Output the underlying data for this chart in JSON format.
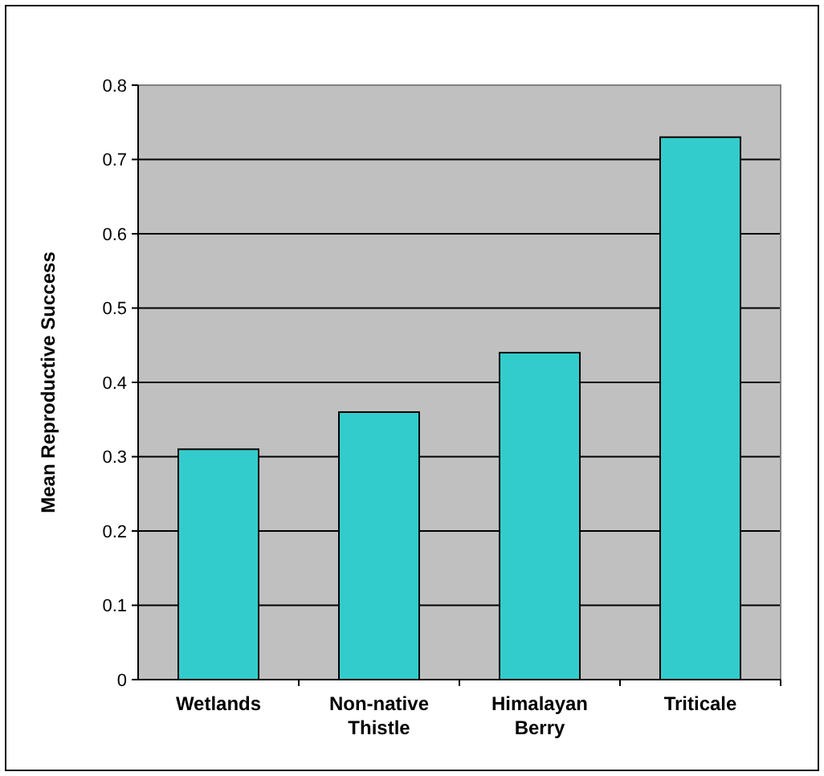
{
  "chart_data": {
    "type": "bar",
    "ylabel": "Mean Reproductive Success",
    "categories": [
      "Wetlands",
      "Non-native Thistle",
      "Himalayan Berry",
      "Triticale"
    ],
    "values": [
      0.31,
      0.36,
      0.44,
      0.73
    ],
    "color": "#33cccc",
    "ylim": [
      0,
      0.8
    ],
    "yticks": [
      0,
      0.1,
      0.2,
      0.3,
      0.4,
      0.5,
      0.6,
      0.7,
      0.8
    ],
    "grid": "y"
  }
}
